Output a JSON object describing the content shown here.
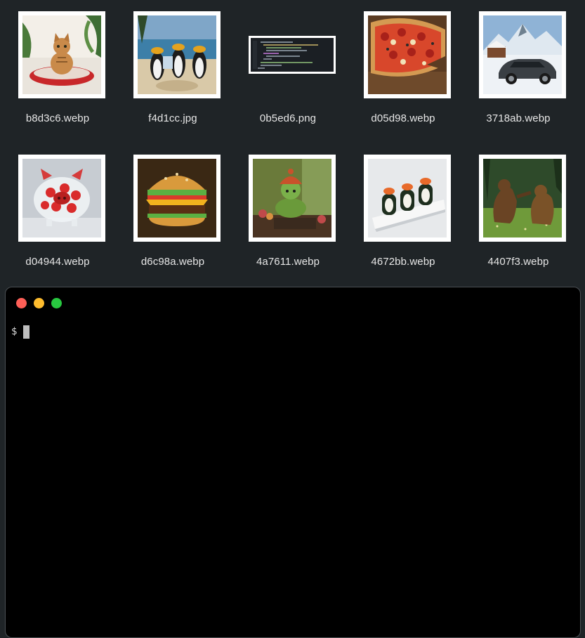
{
  "desktop": {
    "files": [
      {
        "name": "b8d3c6.webp",
        "thumb": "cat-on-cushion"
      },
      {
        "name": "f4d1cc.jpg",
        "thumb": "penguins-on-beach"
      },
      {
        "name": "0b5ed6.png",
        "thumb": "code-screenshot"
      },
      {
        "name": "d05d98.webp",
        "thumb": "pizza"
      },
      {
        "name": "3718ab.webp",
        "thumb": "sports-car-in-snow"
      },
      {
        "name": "d04944.webp",
        "thumb": "strawberry-piggy-bank"
      },
      {
        "name": "d6c98a.webp",
        "thumb": "lego-burger"
      },
      {
        "name": "4a7611.webp",
        "thumb": "crochet-turtle"
      },
      {
        "name": "4672bb.webp",
        "thumb": "penguin-sushi"
      },
      {
        "name": "4407f3.webp",
        "thumb": "bears-in-meadow"
      }
    ]
  },
  "terminal": {
    "prompt": "$",
    "buttons": [
      "close",
      "minimize",
      "maximize"
    ]
  },
  "colors": {
    "desktop_bg": "#1f2427",
    "terminal_bg": "#000000",
    "close": "#fe5f57",
    "minimize": "#febc2e",
    "maximize": "#28c840"
  }
}
